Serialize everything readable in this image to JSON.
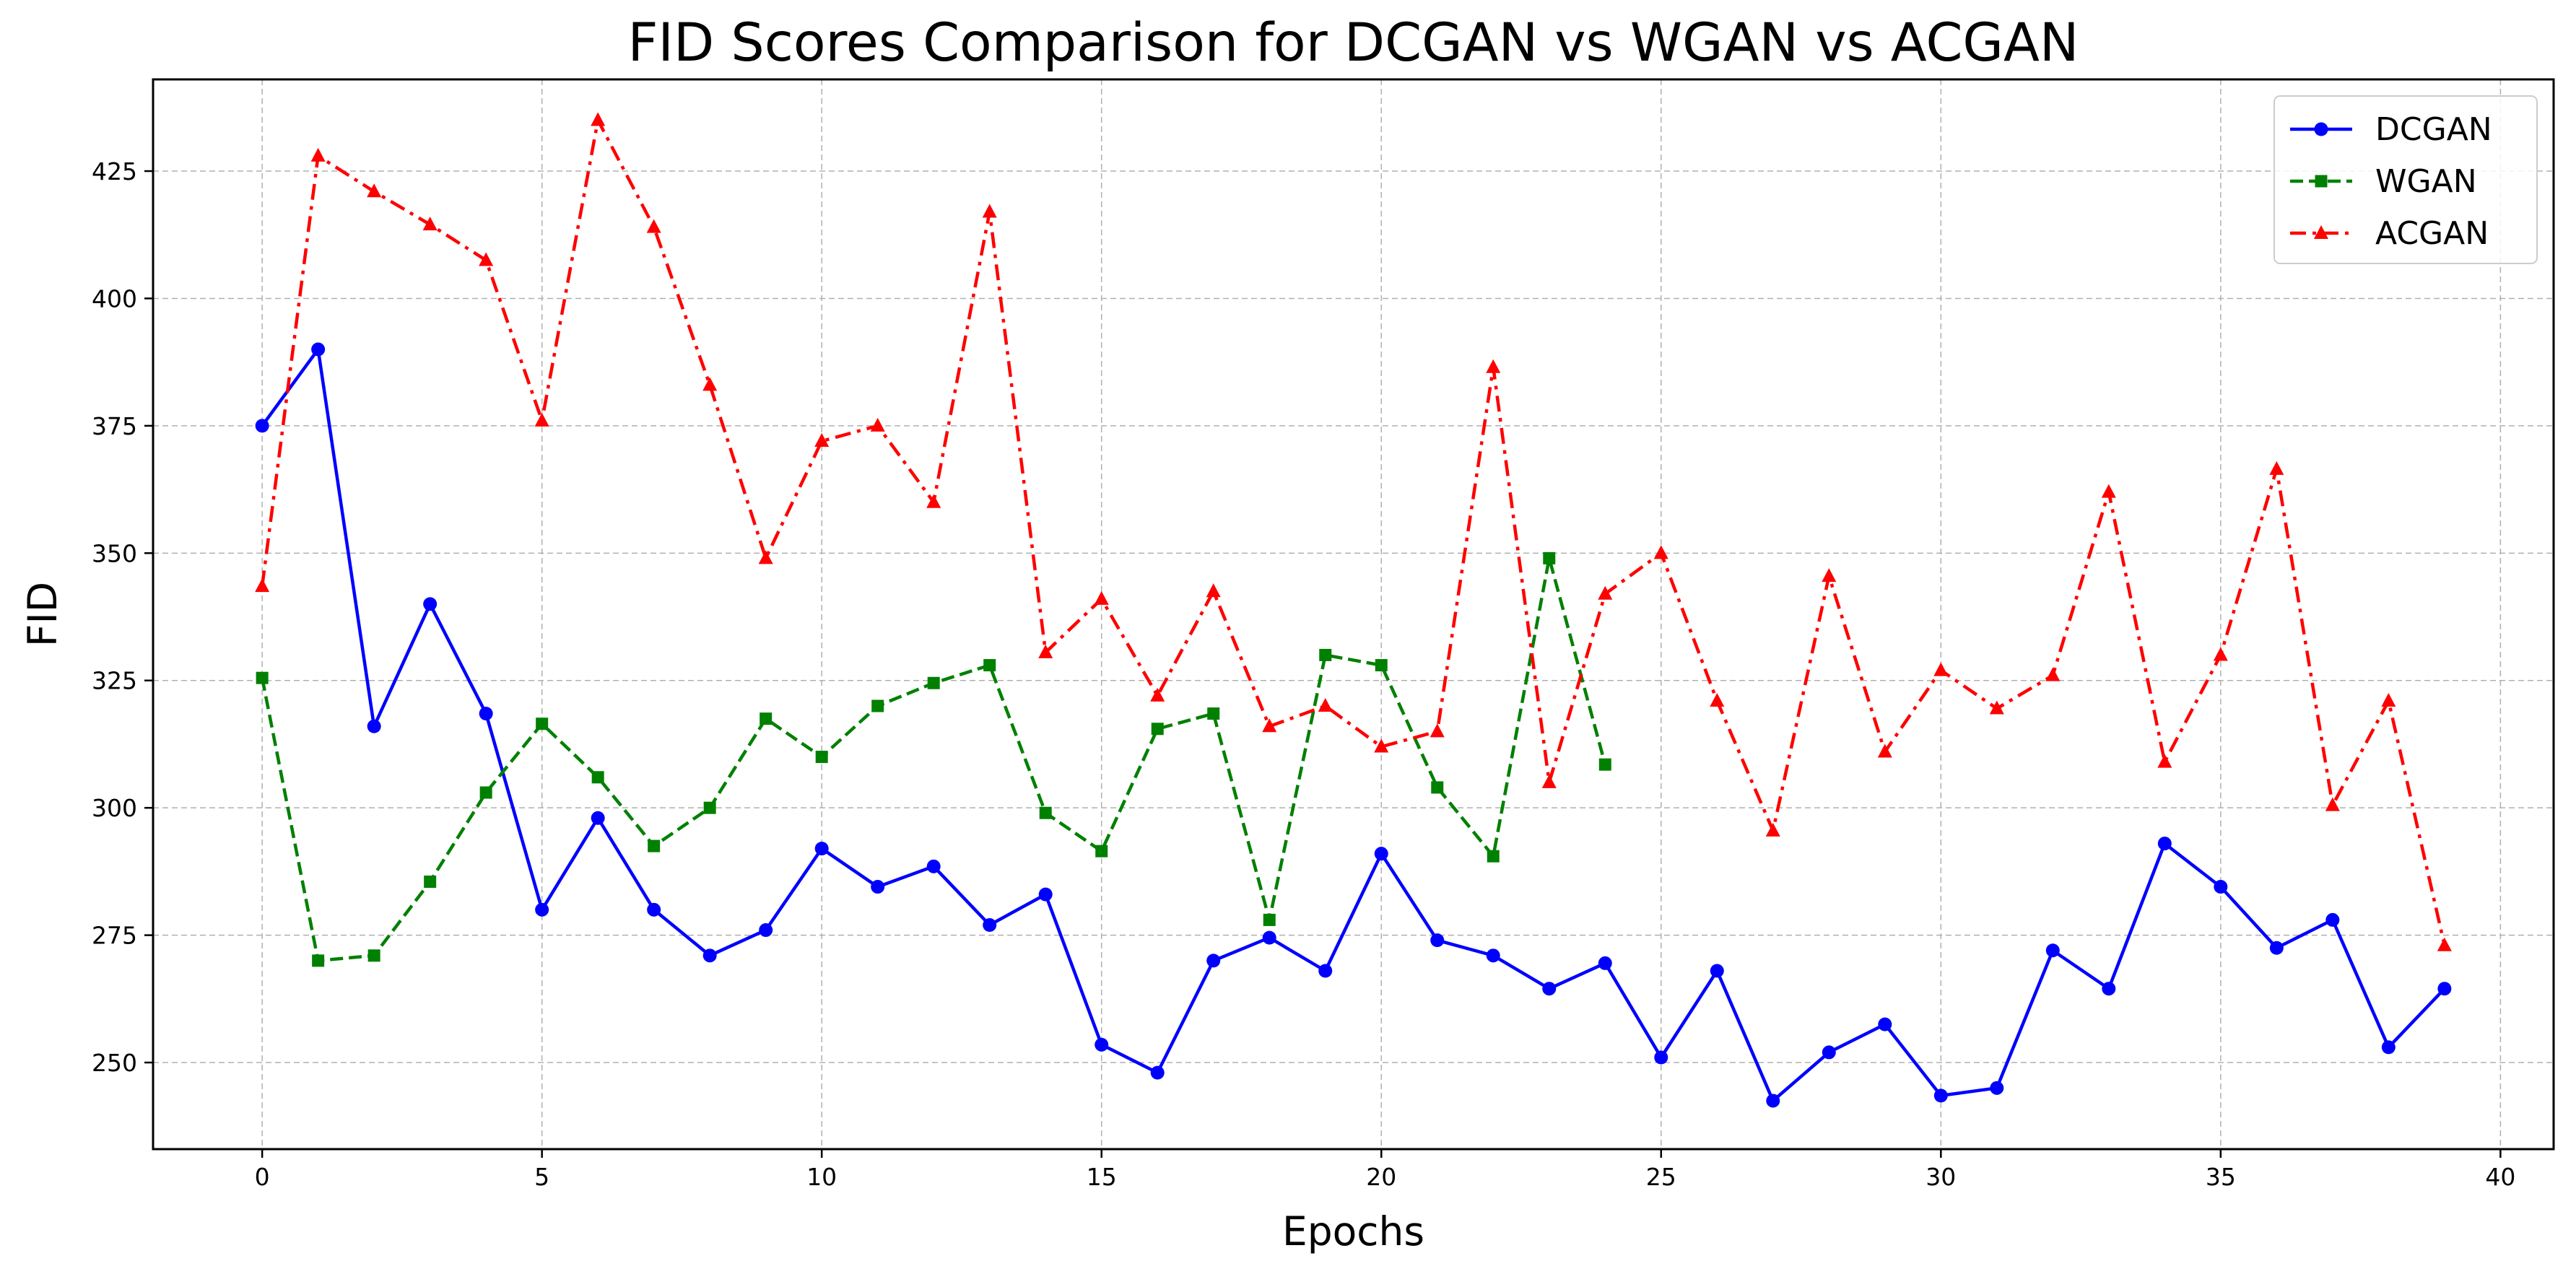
{
  "chart_data": {
    "type": "line",
    "title": "FID Scores Comparison for DCGAN vs WGAN vs ACGAN",
    "xlabel": "Epochs",
    "ylabel": "FID",
    "xlim": [
      -1.95,
      40.95
    ],
    "ylim": [
      233,
      443
    ],
    "xticks": [
      0,
      5,
      10,
      15,
      20,
      25,
      30,
      35,
      40
    ],
    "yticks": [
      250,
      275,
      300,
      325,
      350,
      375,
      400,
      425
    ],
    "grid": true,
    "legend_position": "top-right",
    "series": [
      {
        "name": "DCGAN",
        "color": "#0000ff",
        "linestyle": "solid",
        "marker": "circle",
        "x": [
          0,
          1,
          2,
          3,
          4,
          5,
          6,
          7,
          8,
          9,
          10,
          11,
          12,
          13,
          14,
          15,
          16,
          17,
          18,
          19,
          20,
          21,
          22,
          23,
          24,
          25,
          26,
          27,
          28,
          29,
          30,
          31,
          32,
          33,
          34,
          35,
          36,
          37,
          38,
          39
        ],
        "values": [
          375,
          390,
          316,
          340,
          318.5,
          280,
          298,
          280,
          271,
          276,
          292,
          284.5,
          288.5,
          277,
          283,
          253.5,
          248,
          270,
          274.5,
          268,
          291,
          274,
          271,
          264.5,
          269.5,
          251,
          268,
          242.5,
          252,
          257.5,
          243.5,
          245,
          272,
          264.5,
          293,
          284.5,
          272.5,
          278,
          253,
          264.5
        ]
      },
      {
        "name": "WGAN",
        "color": "#008000",
        "linestyle": "dashed",
        "marker": "square",
        "x": [
          0,
          1,
          2,
          3,
          4,
          5,
          6,
          7,
          8,
          9,
          10,
          11,
          12,
          13,
          14,
          15,
          16,
          17,
          18,
          19,
          20,
          21,
          22,
          23,
          24
        ],
        "values": [
          325.5,
          270,
          271,
          285.5,
          303,
          316.5,
          306,
          292.5,
          300,
          317.5,
          310,
          320,
          324.5,
          328,
          299,
          291.5,
          315.5,
          318.5,
          278,
          330,
          328,
          304,
          290.5,
          349,
          308.5
        ]
      },
      {
        "name": "ACGAN",
        "color": "#ff0000",
        "linestyle": "dashdot",
        "marker": "triangle",
        "x": [
          0,
          1,
          2,
          3,
          4,
          5,
          6,
          7,
          8,
          9,
          10,
          11,
          12,
          13,
          14,
          15,
          16,
          17,
          18,
          19,
          20,
          21,
          22,
          23,
          24,
          25,
          26,
          27,
          28,
          29,
          30,
          31,
          32,
          33,
          34,
          35,
          36,
          37,
          38,
          39
        ],
        "values": [
          343.5,
          428,
          421,
          414.5,
          407.5,
          376,
          435,
          414,
          383,
          349,
          372,
          375,
          360,
          417,
          330.5,
          341,
          322,
          342.5,
          316,
          320,
          312,
          315,
          386.5,
          305,
          342,
          350,
          321,
          295.5,
          345.5,
          311,
          327,
          319.5,
          326,
          362,
          309,
          330,
          366.5,
          300.5,
          321,
          273
        ]
      }
    ]
  }
}
